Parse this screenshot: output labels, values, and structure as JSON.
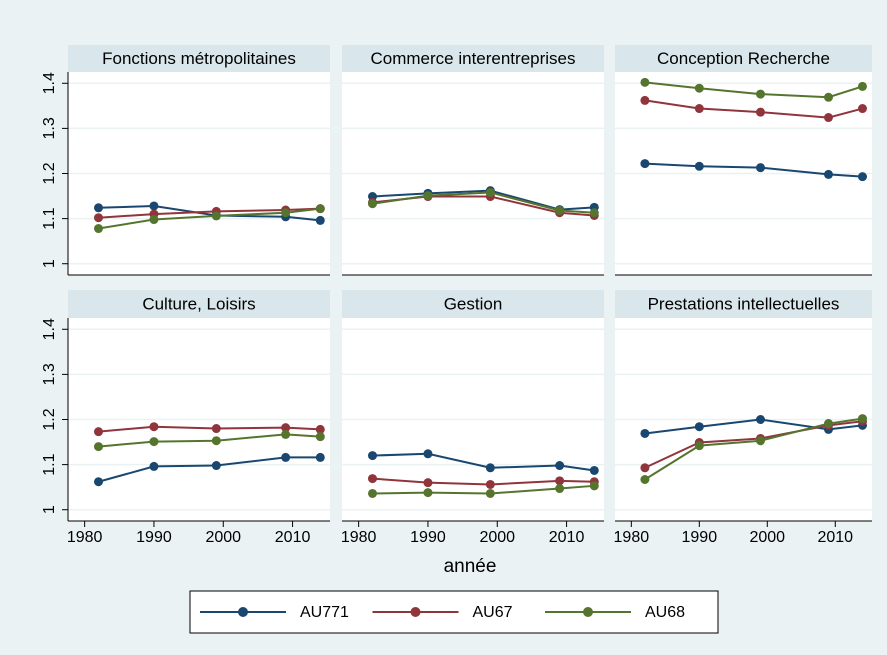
{
  "chart_data": {
    "type": "line",
    "x_label": "année",
    "x": [
      1982,
      1990,
      1999,
      2009,
      2014
    ],
    "xlim": [
      1977.6,
      2015.4
    ],
    "xticks": [
      1980,
      1990,
      2000,
      2010
    ],
    "ylim": [
      0.975,
      1.425
    ],
    "yticks": [
      1,
      1.1,
      1.2,
      1.3,
      1.4
    ],
    "grid": true,
    "series": [
      {
        "name": "AU771",
        "color": "#1a476f"
      },
      {
        "name": "AU67",
        "color": "#90353b"
      },
      {
        "name": "AU68",
        "color": "#55752f"
      }
    ],
    "panels": [
      {
        "title": "Fonctions métropolitaines",
        "values": [
          [
            1.124,
            1.128,
            1.107,
            1.104,
            1.096
          ],
          [
            1.102,
            1.11,
            1.116,
            1.119,
            1.122
          ],
          [
            1.078,
            1.098,
            1.106,
            1.113,
            1.122
          ]
        ]
      },
      {
        "title": "Commerce interentreprises",
        "values": [
          [
            1.149,
            1.156,
            1.162,
            1.12,
            1.125
          ],
          [
            1.136,
            1.149,
            1.149,
            1.113,
            1.107
          ],
          [
            1.133,
            1.151,
            1.158,
            1.118,
            1.113
          ]
        ]
      },
      {
        "title": "Conception Recherche",
        "values": [
          [
            1.222,
            1.216,
            1.213,
            1.198,
            1.193
          ],
          [
            1.362,
            1.344,
            1.336,
            1.324,
            1.344
          ],
          [
            1.402,
            1.389,
            1.376,
            1.369,
            1.393
          ]
        ]
      },
      {
        "title": "Culture, Loisirs",
        "values": [
          [
            1.062,
            1.096,
            1.098,
            1.116,
            1.116
          ],
          [
            1.173,
            1.184,
            1.18,
            1.182,
            1.178
          ],
          [
            1.14,
            1.151,
            1.153,
            1.167,
            1.162
          ]
        ]
      },
      {
        "title": "Gestion",
        "values": [
          [
            1.12,
            1.124,
            1.093,
            1.098,
            1.087
          ],
          [
            1.069,
            1.06,
            1.056,
            1.064,
            1.062
          ],
          [
            1.036,
            1.038,
            1.036,
            1.047,
            1.053
          ]
        ]
      },
      {
        "title": "Prestations intellectuelles",
        "values": [
          [
            1.169,
            1.184,
            1.2,
            1.178,
            1.187
          ],
          [
            1.093,
            1.149,
            1.158,
            1.187,
            1.196
          ],
          [
            1.067,
            1.142,
            1.153,
            1.191,
            1.202
          ]
        ]
      }
    ]
  }
}
